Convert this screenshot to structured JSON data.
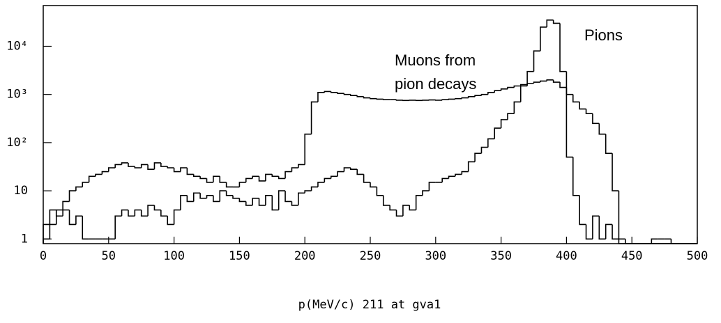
{
  "chart_data": {
    "type": "histogram",
    "xlabel": "p(MeV/c) 211 at gva1",
    "annotations": [
      "Pions",
      "Muons from",
      "pion decays"
    ],
    "bins": [
      0,
      5,
      10,
      15,
      20,
      25,
      30,
      35,
      40,
      45,
      50,
      55,
      60,
      65,
      70,
      75,
      80,
      85,
      90,
      95,
      100,
      105,
      110,
      115,
      120,
      125,
      130,
      135,
      140,
      145,
      150,
      155,
      160,
      165,
      170,
      175,
      180,
      185,
      190,
      195,
      200,
      205,
      210,
      215,
      220,
      225,
      230,
      235,
      240,
      245,
      250,
      255,
      260,
      265,
      270,
      275,
      280,
      285,
      290,
      295,
      300,
      305,
      310,
      315,
      320,
      325,
      330,
      335,
      340,
      345,
      350,
      355,
      360,
      365,
      370,
      375,
      380,
      385,
      390,
      395,
      400,
      405,
      410,
      415,
      420,
      425,
      430,
      435,
      440,
      445,
      450,
      455,
      460,
      465,
      470,
      475,
      480,
      485,
      490,
      495,
      500
    ],
    "series": [
      {
        "color": "#000000",
        "values": [
          1,
          2,
          4,
          6,
          10,
          12,
          15,
          20,
          22,
          25,
          30,
          35,
          38,
          32,
          30,
          35,
          28,
          38,
          32,
          30,
          25,
          30,
          22,
          20,
          18,
          15,
          20,
          15,
          12,
          12,
          15,
          18,
          20,
          16,
          22,
          20,
          18,
          25,
          30,
          35,
          150,
          700,
          1100,
          1150,
          1100,
          1050,
          1000,
          950,
          900,
          850,
          820,
          800,
          780,
          780,
          760,
          750,
          760,
          750,
          760,
          770,
          760,
          780,
          800,
          820,
          850,
          900,
          950,
          1000,
          1100,
          1200,
          1300,
          1400,
          1500,
          1600,
          1700,
          1800,
          1900,
          2000,
          1800,
          1400,
          1000,
          700,
          500,
          400,
          250,
          150,
          60,
          10,
          1,
          0,
          0,
          0,
          0,
          0,
          0,
          0,
          0,
          0,
          0,
          0
        ]
      },
      {
        "color": "#000000",
        "values": [
          2,
          4,
          3,
          4,
          2,
          3,
          1,
          1,
          1,
          1,
          1,
          3,
          4,
          3,
          4,
          3,
          5,
          4,
          3,
          2,
          4,
          8,
          6,
          9,
          7,
          8,
          6,
          10,
          8,
          7,
          6,
          5,
          7,
          5,
          8,
          4,
          10,
          6,
          5,
          9,
          10,
          12,
          15,
          18,
          20,
          25,
          30,
          28,
          22,
          15,
          12,
          8,
          5,
          4,
          3,
          5,
          4,
          8,
          10,
          15,
          15,
          18,
          20,
          22,
          25,
          40,
          60,
          80,
          120,
          200,
          300,
          400,
          700,
          1500,
          3000,
          8000,
          25000,
          35000,
          30000,
          3000,
          50,
          8,
          2,
          1,
          3,
          1,
          2,
          1,
          0,
          0,
          0,
          0,
          0,
          1,
          1,
          1,
          0,
          0,
          0,
          0
        ]
      }
    ],
    "xlim": [
      0,
      500
    ],
    "xticks": [
      0,
      50,
      100,
      150,
      200,
      250,
      300,
      350,
      400,
      450,
      500
    ],
    "ylim": [
      0.8,
      70000
    ],
    "log_y": true,
    "yticks": [
      1,
      10,
      {
        "value": 100,
        "label": "10²"
      },
      {
        "value": 1000,
        "label": "10³"
      },
      {
        "value": 10000,
        "label": "10⁴"
      }
    ]
  }
}
